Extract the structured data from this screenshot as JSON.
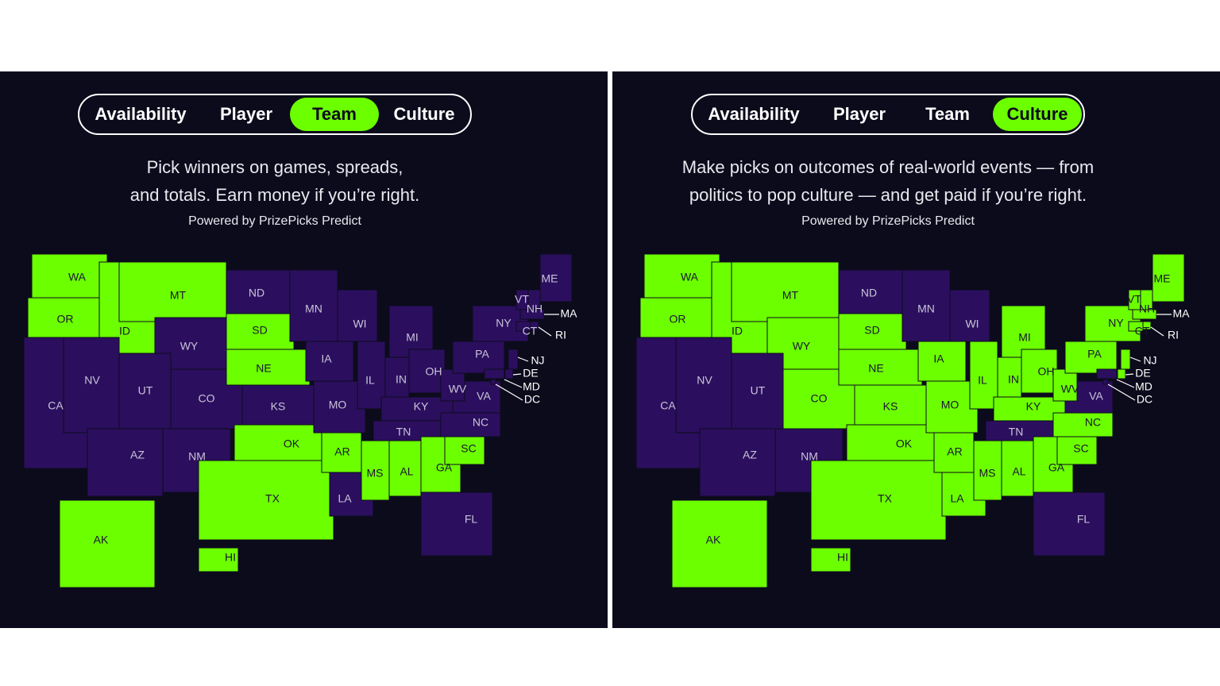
{
  "colors": {
    "available": "#6cff00",
    "unavailable": "#2b0f5e",
    "background": "#0c0b1c"
  },
  "panels": [
    {
      "tabs": [
        {
          "label": "Availability",
          "active": false
        },
        {
          "label": "Player",
          "active": false
        },
        {
          "label": "Team",
          "active": true
        },
        {
          "label": "Culture",
          "active": false
        }
      ],
      "description": [
        "Pick winners on games, spreads,",
        "and totals. Earn money if you’re right."
      ],
      "powered_by": "Powered by PrizePicks Predict",
      "states": [
        {
          "label": "WA",
          "available": true
        },
        {
          "label": "OR",
          "available": true
        },
        {
          "label": "CA",
          "available": false
        },
        {
          "label": "ID",
          "available": true
        },
        {
          "label": "NV",
          "available": false
        },
        {
          "label": "MT",
          "available": true
        },
        {
          "label": "WY",
          "available": false
        },
        {
          "label": "UT",
          "available": false
        },
        {
          "label": "CO",
          "available": false
        },
        {
          "label": "AZ",
          "available": false
        },
        {
          "label": "NM",
          "available": false
        },
        {
          "label": "ND",
          "available": false
        },
        {
          "label": "SD",
          "available": true
        },
        {
          "label": "NE",
          "available": true
        },
        {
          "label": "KS",
          "available": false
        },
        {
          "label": "OK",
          "available": true
        },
        {
          "label": "TX",
          "available": true
        },
        {
          "label": "MN",
          "available": false
        },
        {
          "label": "IA",
          "available": false
        },
        {
          "label": "MO",
          "available": false
        },
        {
          "label": "AR",
          "available": true
        },
        {
          "label": "LA",
          "available": false
        },
        {
          "label": "WI",
          "available": false
        },
        {
          "label": "IL",
          "available": false
        },
        {
          "label": "MI",
          "available": false
        },
        {
          "label": "IN",
          "available": false
        },
        {
          "label": "OH",
          "available": false
        },
        {
          "label": "KY",
          "available": false
        },
        {
          "label": "TN",
          "available": false
        },
        {
          "label": "MS",
          "available": true
        },
        {
          "label": "AL",
          "available": true
        },
        {
          "label": "GA",
          "available": true
        },
        {
          "label": "FL",
          "available": false
        },
        {
          "label": "SC",
          "available": true
        },
        {
          "label": "NC",
          "available": false
        },
        {
          "label": "VA",
          "available": false
        },
        {
          "label": "WV",
          "available": false
        },
        {
          "label": "PA",
          "available": false
        },
        {
          "label": "NY",
          "available": false
        },
        {
          "label": "ME",
          "available": false
        },
        {
          "label": "VT",
          "available": false
        },
        {
          "label": "NH",
          "available": false
        },
        {
          "label": "MA",
          "available": false
        },
        {
          "label": "CT",
          "available": false
        },
        {
          "label": "RI",
          "available": false
        },
        {
          "label": "NJ",
          "available": false
        },
        {
          "label": "DE",
          "available": false
        },
        {
          "label": "MD",
          "available": false
        },
        {
          "label": "DC",
          "available": false
        },
        {
          "label": "AK",
          "available": true
        },
        {
          "label": "HI",
          "available": true
        }
      ]
    },
    {
      "tabs": [
        {
          "label": "Availability",
          "active": false
        },
        {
          "label": "Player",
          "active": false
        },
        {
          "label": "Team",
          "active": false
        },
        {
          "label": "Culture",
          "active": true
        }
      ],
      "description": [
        "Make picks on outcomes of real-world events — from",
        "politics to pop culture — and get paid if you’re right."
      ],
      "powered_by": "Powered by PrizePicks Predict",
      "states": [
        {
          "label": "WA",
          "available": true
        },
        {
          "label": "OR",
          "available": true
        },
        {
          "label": "CA",
          "available": false
        },
        {
          "label": "ID",
          "available": true
        },
        {
          "label": "NV",
          "available": false
        },
        {
          "label": "MT",
          "available": true
        },
        {
          "label": "WY",
          "available": true
        },
        {
          "label": "UT",
          "available": false
        },
        {
          "label": "CO",
          "available": true
        },
        {
          "label": "AZ",
          "available": false
        },
        {
          "label": "NM",
          "available": false
        },
        {
          "label": "ND",
          "available": false
        },
        {
          "label": "SD",
          "available": true
        },
        {
          "label": "NE",
          "available": true
        },
        {
          "label": "KS",
          "available": true
        },
        {
          "label": "OK",
          "available": true
        },
        {
          "label": "TX",
          "available": true
        },
        {
          "label": "MN",
          "available": false
        },
        {
          "label": "IA",
          "available": true
        },
        {
          "label": "MO",
          "available": true
        },
        {
          "label": "AR",
          "available": true
        },
        {
          "label": "LA",
          "available": true
        },
        {
          "label": "WI",
          "available": false
        },
        {
          "label": "IL",
          "available": true
        },
        {
          "label": "MI",
          "available": true
        },
        {
          "label": "IN",
          "available": true
        },
        {
          "label": "OH",
          "available": true
        },
        {
          "label": "KY",
          "available": true
        },
        {
          "label": "TN",
          "available": false
        },
        {
          "label": "MS",
          "available": true
        },
        {
          "label": "AL",
          "available": true
        },
        {
          "label": "GA",
          "available": true
        },
        {
          "label": "FL",
          "available": false
        },
        {
          "label": "SC",
          "available": true
        },
        {
          "label": "NC",
          "available": true
        },
        {
          "label": "VA",
          "available": false
        },
        {
          "label": "WV",
          "available": true
        },
        {
          "label": "PA",
          "available": true
        },
        {
          "label": "NY",
          "available": true
        },
        {
          "label": "ME",
          "available": true
        },
        {
          "label": "VT",
          "available": true
        },
        {
          "label": "NH",
          "available": true
        },
        {
          "label": "MA",
          "available": true
        },
        {
          "label": "CT",
          "available": true
        },
        {
          "label": "RI",
          "available": true
        },
        {
          "label": "NJ",
          "available": true
        },
        {
          "label": "DE",
          "available": true
        },
        {
          "label": "MD",
          "available": false
        },
        {
          "label": "DC",
          "available": false
        },
        {
          "label": "AK",
          "available": true
        },
        {
          "label": "HI",
          "available": true
        }
      ]
    }
  ]
}
